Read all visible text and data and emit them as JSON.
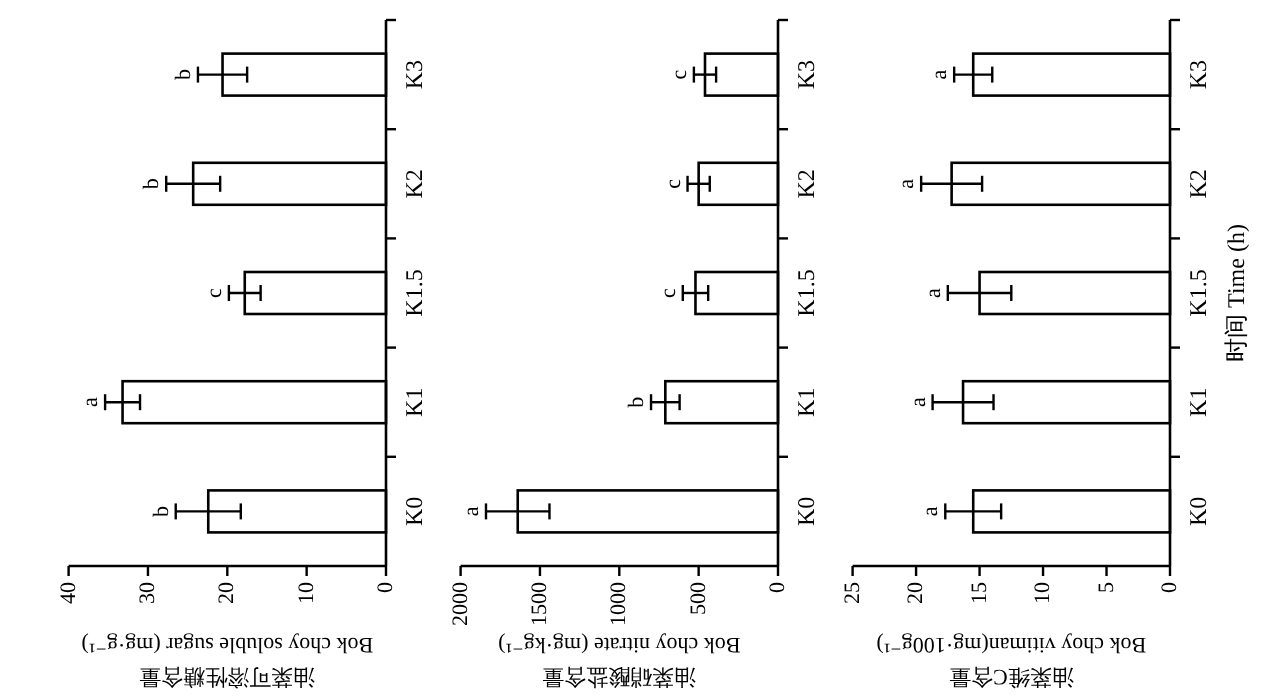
{
  "chart_data": [
    {
      "type": "bar",
      "orientation": "horizontal",
      "xlabel": "油菜可溶性糖含量\nBok choy soluble sugar (mg·g⁻¹)",
      "categories": [
        "K3",
        "K2",
        "K1.5",
        "K1",
        "K0"
      ],
      "color": "#ffffff",
      "values": [
        20.6,
        24.3,
        17.8,
        33.2,
        22.4
      ],
      "errors": [
        3.1,
        3.4,
        2.0,
        2.2,
        4.1
      ],
      "xlim": [
        40,
        0
      ],
      "xticks": [
        40,
        30,
        20,
        10,
        0
      ],
      "annotations": [
        "b",
        "b",
        "c",
        "a",
        "b"
      ]
    },
    {
      "type": "bar",
      "orientation": "horizontal",
      "xlabel": "油菜硝酸盐含量\nBok choy nitrate (mg·kg⁻¹)",
      "categories": [
        "K3",
        "K2",
        "K1.5",
        "K1",
        "K0"
      ],
      "color": "#ffffff",
      "values": [
        460,
        500,
        520,
        710,
        1640
      ],
      "errors": [
        70,
        70,
        80,
        90,
        200
      ],
      "xlim": [
        2000,
        0
      ],
      "xticks": [
        2000,
        1500,
        1000,
        500,
        0
      ],
      "annotations": [
        "c",
        "c",
        "c",
        "b",
        "a"
      ]
    },
    {
      "type": "bar",
      "orientation": "horizontal",
      "xlabel": "油菜维C含量\nBok choy vitiman(mg·100g⁻¹)",
      "y2label": "时间 Time (h)",
      "categories": [
        "K3",
        "K2",
        "K1.5",
        "K1",
        "K0"
      ],
      "color": "#ffffff",
      "values": [
        15.5,
        17.2,
        15.0,
        16.3,
        15.5
      ],
      "errors": [
        1.5,
        2.4,
        2.5,
        2.4,
        2.2
      ],
      "xlim": [
        25,
        0
      ],
      "xticks": [
        25,
        20,
        15,
        10,
        5,
        0
      ],
      "annotations": [
        "a",
        "a",
        "a",
        "a",
        "a"
      ]
    }
  ]
}
